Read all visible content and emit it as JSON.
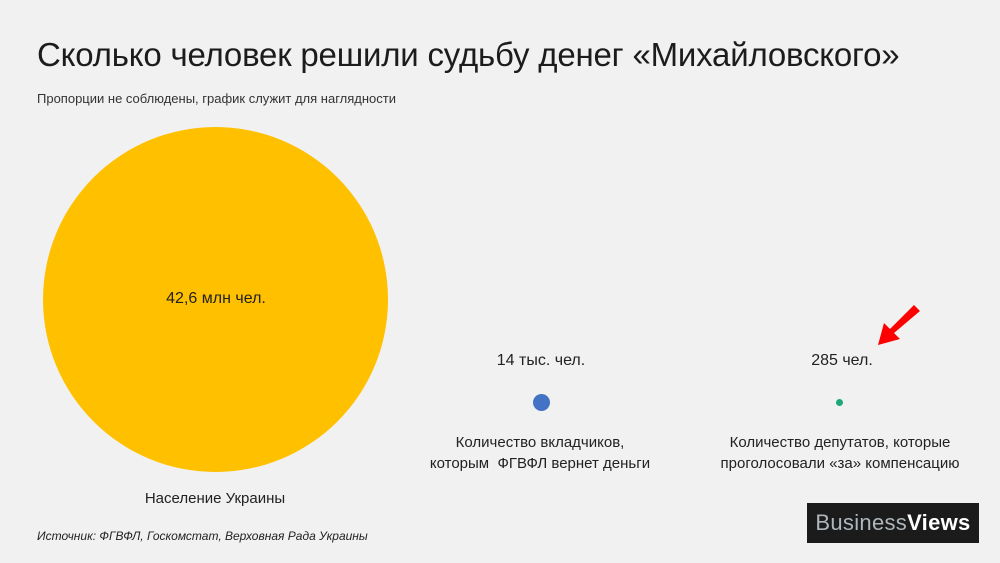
{
  "title": "Сколько человек решили судьбу денег «Михайловского»",
  "subtitle": "Пропорции не соблюдены, график служит для наглядности",
  "source": "Источник: ФГВФЛ, Госкомстат, Верховная Рада Украины",
  "logo": {
    "part1": "Business",
    "part2": "Views"
  },
  "chart_data": {
    "type": "bubble",
    "items": [
      {
        "value_label": "42,6 млн чел.",
        "value": 42600000,
        "category": "Население Украины",
        "color": "#ffc000"
      },
      {
        "value_label": "14 тыс. чел.",
        "value": 14000,
        "category_lines": [
          "Количество вкладчиков,",
          "которым  ФГВФЛ вернет деньги"
        ],
        "color": "#4472c4"
      },
      {
        "value_label": "285 чел.",
        "value": 285,
        "category_lines": [
          "Количество депутатов, которые",
          "проголосовали «за» компенсацию"
        ],
        "color": "#1fa67a"
      }
    ],
    "highlight": "red-arrow-icon",
    "highlight_color": "#ff0000"
  }
}
